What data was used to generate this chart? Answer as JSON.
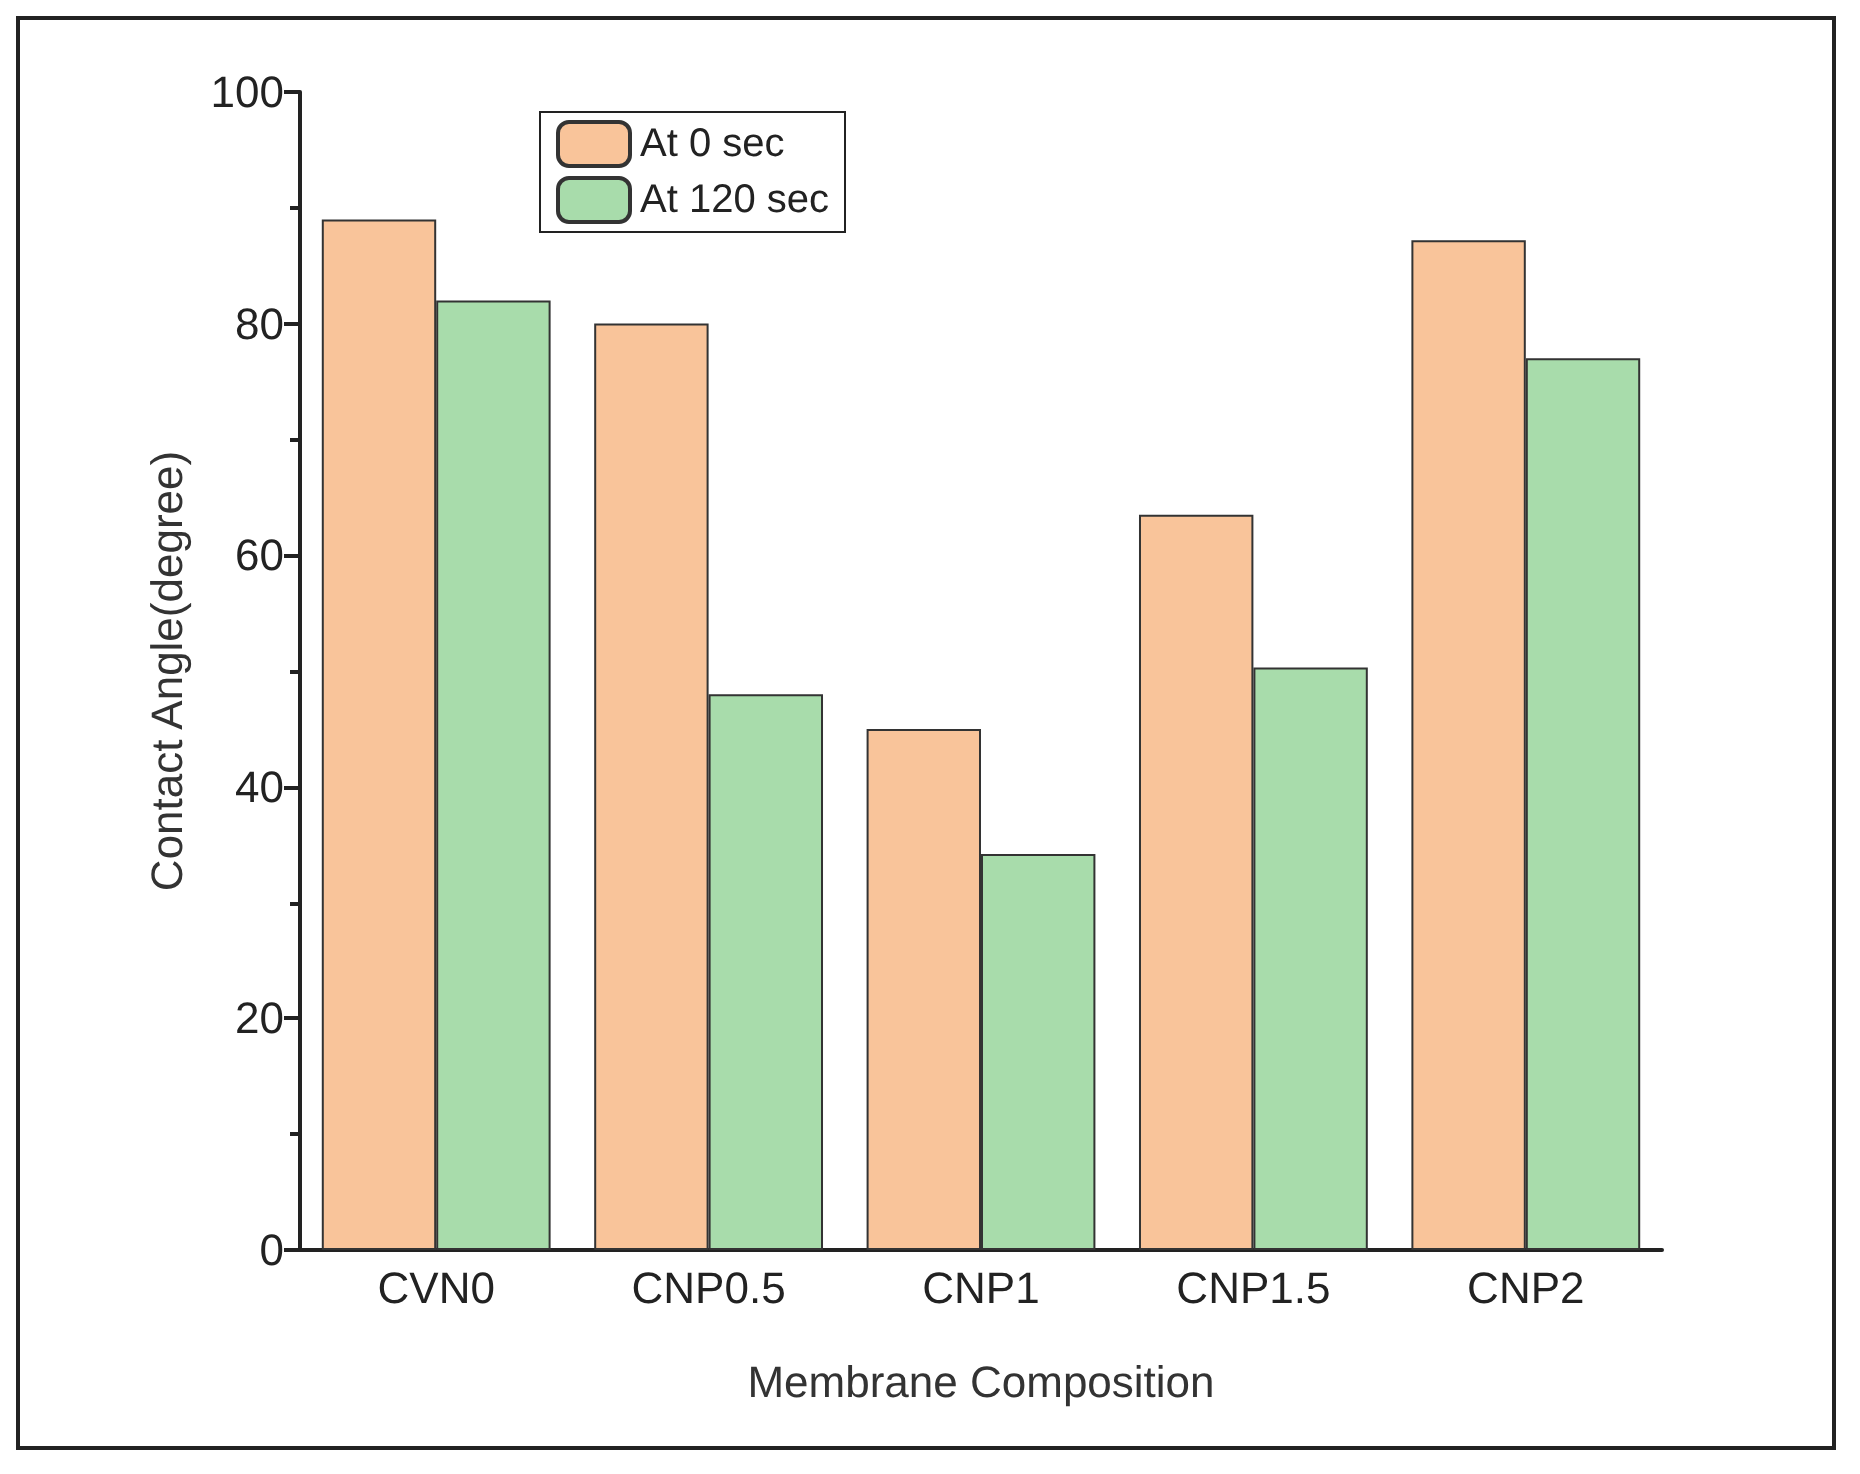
{
  "chart_data": {
    "type": "bar",
    "xlabel": "Membrane Composition",
    "ylabel": "Contact Angle(degree)",
    "categories": [
      "CVN0",
      "CNP0.5",
      "CNP1",
      "CNP1.5",
      "CNP2"
    ],
    "series": [
      {
        "name": "At 0 sec",
        "color": "#f9c49a",
        "values": [
          89,
          80,
          45,
          63.5,
          87.2
        ]
      },
      {
        "name": "At 120 sec",
        "color": "#a8dcab",
        "values": [
          82,
          48,
          34.2,
          50.3,
          77
        ]
      }
    ],
    "ylim": [
      0,
      100
    ],
    "yticks": [
      0,
      20,
      40,
      60,
      80,
      100
    ],
    "grid": false,
    "legend": "top left"
  }
}
